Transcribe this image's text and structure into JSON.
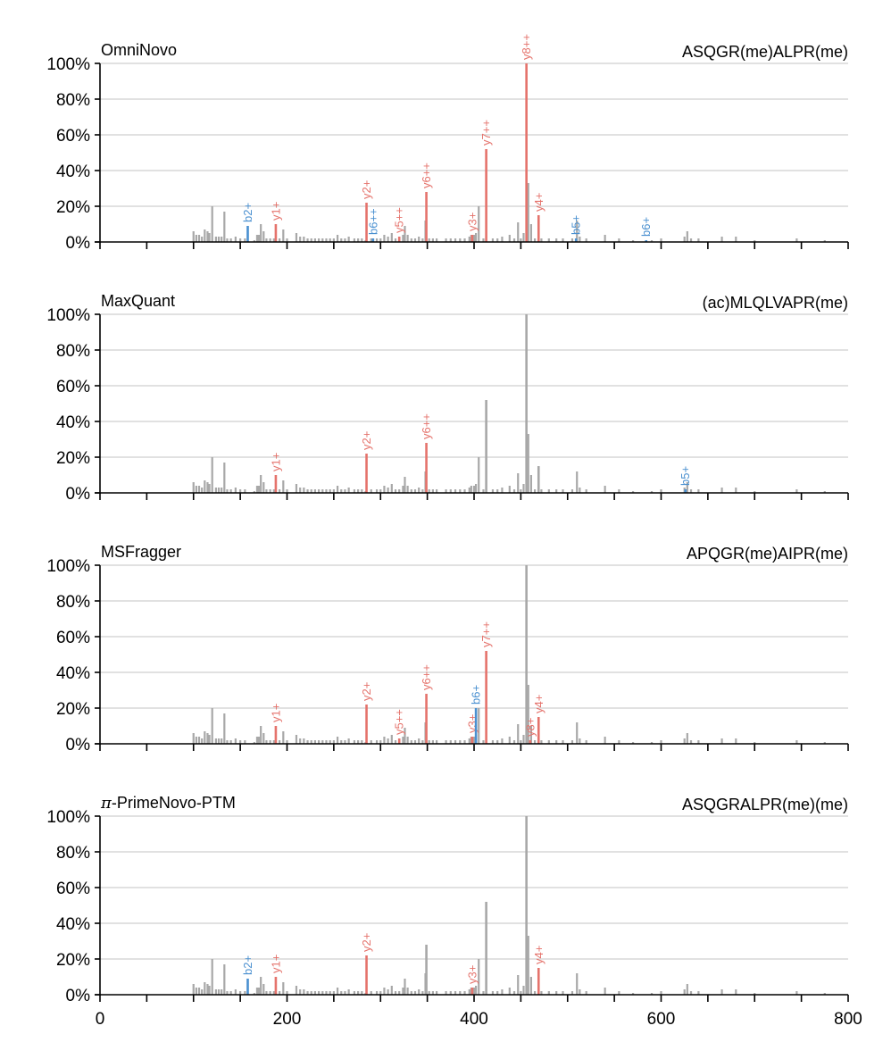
{
  "chart_data": {
    "type": "bar",
    "description": "Annotated MS/MS spectra for four peptide identification tools",
    "colors": {
      "unmatched": "#a8a8a8",
      "y_ion": "#e5736c",
      "b_ion": "#4a90d0",
      "grid": "#cfcfcf"
    },
    "xlim": [
      0,
      800
    ],
    "ylim": [
      0,
      100
    ],
    "x_ticks": [
      0,
      200,
      400,
      600,
      800
    ],
    "x_tick_labels": [
      "0",
      "200",
      "400",
      "600",
      "800"
    ],
    "y_ticks": [
      0,
      20,
      40,
      60,
      80,
      100
    ],
    "y_tick_labels": [
      "0%",
      "20%",
      "40%",
      "60%",
      "80%",
      "100%"
    ],
    "grid": true,
    "spectrum": [
      [
        100,
        6
      ],
      [
        103,
        4
      ],
      [
        106,
        4
      ],
      [
        109,
        3
      ],
      [
        112,
        7
      ],
      [
        115,
        6
      ],
      [
        117,
        5
      ],
      [
        120,
        20
      ],
      [
        124,
        3
      ],
      [
        127,
        3
      ],
      [
        130,
        3
      ],
      [
        133,
        17
      ],
      [
        136,
        2
      ],
      [
        140,
        2
      ],
      [
        145,
        3
      ],
      [
        150,
        2
      ],
      [
        155,
        2
      ],
      [
        165,
        1
      ],
      [
        168,
        4
      ],
      [
        170,
        4
      ],
      [
        172,
        10
      ],
      [
        175,
        6
      ],
      [
        178,
        2
      ],
      [
        182,
        2
      ],
      [
        186,
        2
      ],
      [
        192,
        2
      ],
      [
        196,
        7
      ],
      [
        200,
        2
      ],
      [
        210,
        5
      ],
      [
        214,
        3
      ],
      [
        218,
        3
      ],
      [
        222,
        2
      ],
      [
        226,
        2
      ],
      [
        230,
        2
      ],
      [
        234,
        2
      ],
      [
        238,
        2
      ],
      [
        242,
        2
      ],
      [
        246,
        2
      ],
      [
        250,
        2
      ],
      [
        254,
        4
      ],
      [
        258,
        2
      ],
      [
        262,
        2
      ],
      [
        266,
        3
      ],
      [
        272,
        2
      ],
      [
        276,
        2
      ],
      [
        280,
        2
      ],
      [
        284,
        1
      ],
      [
        290,
        2
      ],
      [
        296,
        2
      ],
      [
        300,
        2
      ],
      [
        304,
        4
      ],
      [
        308,
        3
      ],
      [
        312,
        5
      ],
      [
        316,
        2
      ],
      [
        320,
        2
      ],
      [
        324,
        4
      ],
      [
        326,
        9
      ],
      [
        329,
        4
      ],
      [
        333,
        2
      ],
      [
        337,
        2
      ],
      [
        341,
        3
      ],
      [
        345,
        2
      ],
      [
        348,
        12
      ],
      [
        352,
        2
      ],
      [
        356,
        2
      ],
      [
        360,
        2
      ],
      [
        370,
        2
      ],
      [
        375,
        2
      ],
      [
        380,
        2
      ],
      [
        385,
        2
      ],
      [
        390,
        2
      ],
      [
        395,
        3
      ],
      [
        397,
        4
      ],
      [
        400,
        4
      ],
      [
        402,
        5
      ],
      [
        405,
        20
      ],
      [
        410,
        2
      ],
      [
        420,
        2
      ],
      [
        425,
        2
      ],
      [
        430,
        3
      ],
      [
        438,
        4
      ],
      [
        443,
        2
      ],
      [
        447,
        11
      ],
      [
        450,
        2
      ],
      [
        453,
        5
      ],
      [
        458,
        33
      ],
      [
        461,
        10
      ],
      [
        465,
        2
      ],
      [
        472,
        2
      ],
      [
        480,
        2
      ],
      [
        488,
        2
      ],
      [
        495,
        2
      ],
      [
        505,
        2
      ],
      [
        510,
        12
      ],
      [
        513,
        3
      ],
      [
        520,
        2
      ],
      [
        540,
        4
      ],
      [
        555,
        2
      ],
      [
        570,
        1
      ],
      [
        590,
        1
      ],
      [
        600,
        2
      ],
      [
        625,
        3
      ],
      [
        628,
        6
      ],
      [
        632,
        2
      ],
      [
        640,
        2
      ],
      [
        665,
        3
      ],
      [
        680,
        3
      ],
      [
        700,
        1
      ],
      [
        745,
        2
      ],
      [
        775,
        1
      ]
    ],
    "panels": [
      {
        "title": "OmniNovo",
        "title_prefix": "",
        "title_rest": "",
        "peptide": "ASQGR(me)ALPR(me)",
        "peaks": [
          {
            "mz": 158,
            "intensity": 9,
            "ion": "b",
            "label": "b2+"
          },
          {
            "mz": 188,
            "intensity": 10,
            "ion": "y",
            "label": "y1+"
          },
          {
            "mz": 285,
            "intensity": 22,
            "ion": "y",
            "label": "y2+"
          },
          {
            "mz": 292,
            "intensity": 2,
            "ion": "b",
            "label": "b6++"
          },
          {
            "mz": 320,
            "intensity": 3,
            "ion": "y",
            "label": "y5++"
          },
          {
            "mz": 349,
            "intensity": 28,
            "ion": "y",
            "label": "y6++"
          },
          {
            "mz": 398,
            "intensity": 4,
            "ion": "y",
            "label": "y3+"
          },
          {
            "mz": 413,
            "intensity": 52,
            "ion": "y",
            "label": "y7++"
          },
          {
            "mz": 456,
            "intensity": 100,
            "ion": "y",
            "label": "y8++"
          },
          {
            "mz": 469,
            "intensity": 15,
            "ion": "y",
            "label": "y4+"
          },
          {
            "mz": 509,
            "intensity": 2,
            "ion": "b",
            "label": "b5+"
          },
          {
            "mz": 584,
            "intensity": 1,
            "ion": "b",
            "label": "b6+"
          }
        ]
      },
      {
        "title": "MaxQuant",
        "title_prefix": "",
        "title_rest": "",
        "peptide": "(ac)MLQLVAPR(me)",
        "peaks": [
          {
            "mz": 456,
            "intensity": 100,
            "ion": "u",
            "label": ""
          },
          {
            "mz": 413,
            "intensity": 52,
            "ion": "u",
            "label": ""
          },
          {
            "mz": 469,
            "intensity": 15,
            "ion": "u",
            "label": ""
          },
          {
            "mz": 188,
            "intensity": 10,
            "ion": "y",
            "label": "y1+"
          },
          {
            "mz": 285,
            "intensity": 22,
            "ion": "y",
            "label": "y2+"
          },
          {
            "mz": 349,
            "intensity": 28,
            "ion": "y",
            "label": "y6++"
          },
          {
            "mz": 626,
            "intensity": 2,
            "ion": "b",
            "label": "b5+"
          }
        ]
      },
      {
        "title": "MSFragger",
        "title_prefix": "",
        "title_rest": "",
        "peptide": "APQGR(me)AIPR(me)",
        "peaks": [
          {
            "mz": 456,
            "intensity": 100,
            "ion": "u",
            "label": ""
          },
          {
            "mz": 188,
            "intensity": 10,
            "ion": "y",
            "label": "y1+"
          },
          {
            "mz": 285,
            "intensity": 22,
            "ion": "y",
            "label": "y2+"
          },
          {
            "mz": 320,
            "intensity": 3,
            "ion": "y",
            "label": "y5++"
          },
          {
            "mz": 349,
            "intensity": 28,
            "ion": "y",
            "label": "y6++"
          },
          {
            "mz": 398,
            "intensity": 4,
            "ion": "y",
            "label": "y3+"
          },
          {
            "mz": 402,
            "intensity": 20,
            "ion": "b",
            "label": "b6+"
          },
          {
            "mz": 413,
            "intensity": 52,
            "ion": "y",
            "label": "y7++"
          },
          {
            "mz": 460,
            "intensity": 2,
            "ion": "y",
            "label": "y8+"
          },
          {
            "mz": 469,
            "intensity": 15,
            "ion": "y",
            "label": "y4+"
          }
        ]
      },
      {
        "title": "-PrimeNovo-PTM",
        "title_prefix": "π",
        "title_rest": "-PrimeNovo-PTM",
        "peptide": "ASQGRALPR(me)(me)",
        "peaks": [
          {
            "mz": 456,
            "intensity": 100,
            "ion": "u",
            "label": ""
          },
          {
            "mz": 413,
            "intensity": 52,
            "ion": "u",
            "label": ""
          },
          {
            "mz": 349,
            "intensity": 28,
            "ion": "u",
            "label": ""
          },
          {
            "mz": 158,
            "intensity": 9,
            "ion": "b",
            "label": "b2+"
          },
          {
            "mz": 188,
            "intensity": 10,
            "ion": "y",
            "label": "y1+"
          },
          {
            "mz": 285,
            "intensity": 22,
            "ion": "y",
            "label": "y2+"
          },
          {
            "mz": 398,
            "intensity": 4,
            "ion": "y",
            "label": "y3+"
          },
          {
            "mz": 469,
            "intensity": 15,
            "ion": "y",
            "label": "y4+"
          }
        ]
      }
    ]
  }
}
